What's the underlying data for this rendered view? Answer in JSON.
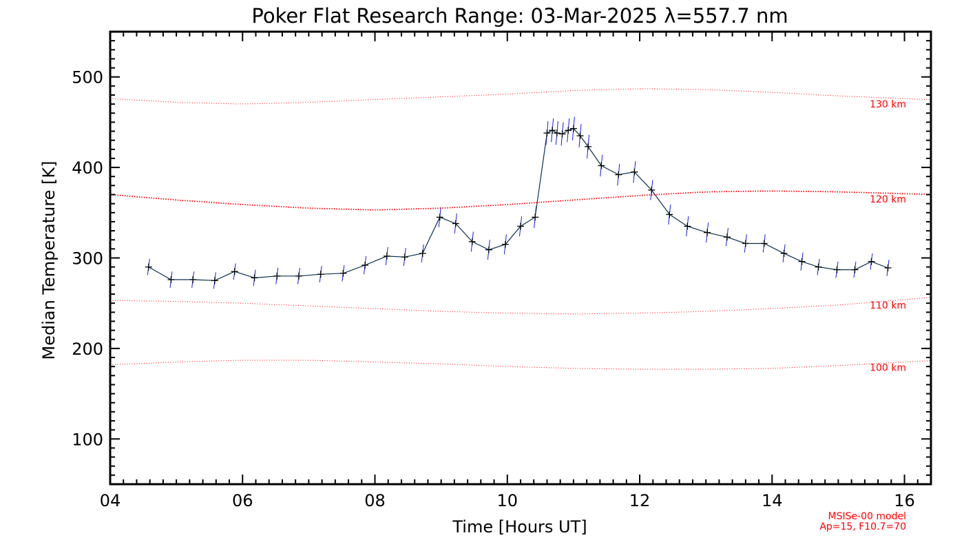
{
  "chart_data": {
    "type": "line",
    "title": "Poker Flat Research Range: 03-Mar-2025 λ=557.7 nm",
    "xlabel": "Time [Hours UT]",
    "ylabel": "Median Temperature [K]",
    "xlim": [
      4,
      16.4
    ],
    "ylim": [
      50,
      550
    ],
    "x_ticks": [
      4,
      6,
      8,
      10,
      12,
      14,
      16
    ],
    "x_tick_labels": [
      "04",
      "06",
      "08",
      "10",
      "12",
      "14",
      "16"
    ],
    "y_ticks": [
      100,
      200,
      300,
      400,
      500
    ],
    "y_tick_labels": [
      "100",
      "200",
      "300",
      "400",
      "500"
    ],
    "grid": false,
    "series": [
      {
        "color": "#000000",
        "error_bar_color": "#1a1adc",
        "line_color": "#0a3050",
        "x": [
          4.58,
          4.92,
          5.25,
          5.58,
          5.88,
          6.18,
          6.52,
          6.85,
          7.18,
          7.52,
          7.85,
          8.18,
          8.45,
          8.72,
          8.98,
          9.22,
          9.47,
          9.72,
          9.97,
          10.2,
          10.42,
          10.6,
          10.68,
          10.75,
          10.83,
          10.92,
          11.0,
          11.1,
          11.22,
          11.42,
          11.68,
          11.92,
          12.18,
          12.45,
          12.72,
          13.02,
          13.32,
          13.6,
          13.88,
          14.18,
          14.45,
          14.7,
          14.98,
          15.25,
          15.5,
          15.75
        ],
        "y": [
          290,
          276,
          276,
          275,
          285,
          278,
          280,
          280,
          282,
          283,
          292,
          302,
          301,
          305,
          345,
          338,
          318,
          309,
          315,
          335,
          345,
          438,
          441,
          438,
          437,
          441,
          443,
          435,
          423,
          402,
          392,
          395,
          375,
          348,
          335,
          328,
          323,
          316,
          316,
          305,
          296,
          290,
          287,
          287,
          296,
          289
        ],
        "error": [
          9,
          9,
          9,
          9,
          9,
          9,
          9,
          9,
          9,
          9,
          10,
          10,
          10,
          10,
          11,
          11,
          11,
          11,
          11,
          11,
          12,
          13,
          13,
          13,
          13,
          13,
          13,
          13,
          13,
          12,
          12,
          12,
          11,
          11,
          11,
          11,
          10,
          10,
          10,
          10,
          10,
          9,
          9,
          9,
          9,
          9
        ]
      }
    ],
    "model_curves": [
      {
        "label": "130 km",
        "color": "#ff0000",
        "style": "dotted",
        "x": [
          4,
          5,
          6,
          7,
          8,
          9,
          10,
          11,
          12,
          13,
          14,
          15,
          16
        ],
        "y": [
          476,
          472,
          470,
          472,
          475,
          478,
          481,
          485,
          487,
          486,
          483,
          479,
          476
        ]
      },
      {
        "label": "120 km",
        "color": "#ff0000",
        "style": "dotted-bold",
        "x": [
          4,
          5,
          6,
          7,
          8,
          9,
          10,
          11,
          12,
          13,
          14,
          15,
          16
        ],
        "y": [
          370,
          364,
          359,
          355,
          353,
          355,
          359,
          364,
          369,
          373,
          374,
          373,
          371
        ]
      },
      {
        "label": "110 km",
        "color": "#ff0000",
        "style": "dotted",
        "x": [
          4,
          5,
          6,
          7,
          8,
          9,
          10,
          11,
          12,
          13,
          14,
          15,
          16
        ],
        "y": [
          253,
          252,
          250,
          247,
          244,
          241,
          239,
          238,
          239,
          241,
          244,
          248,
          254
        ]
      },
      {
        "label": "100 km",
        "color": "#ff0000",
        "style": "dotted",
        "x": [
          4,
          5,
          6,
          7,
          8,
          9,
          10,
          11,
          12,
          13,
          14,
          15,
          16
        ],
        "y": [
          182,
          185,
          187,
          187,
          185,
          183,
          180,
          178,
          177,
          177,
          178,
          181,
          185
        ]
      }
    ],
    "model_note": [
      "MSISe-00 model",
      "Ap=15, F10.7=70"
    ],
    "colors": {
      "axes": "#000000",
      "model": "#ff0000",
      "error_bars": "#1a1adc",
      "line": "#0a3050"
    }
  }
}
